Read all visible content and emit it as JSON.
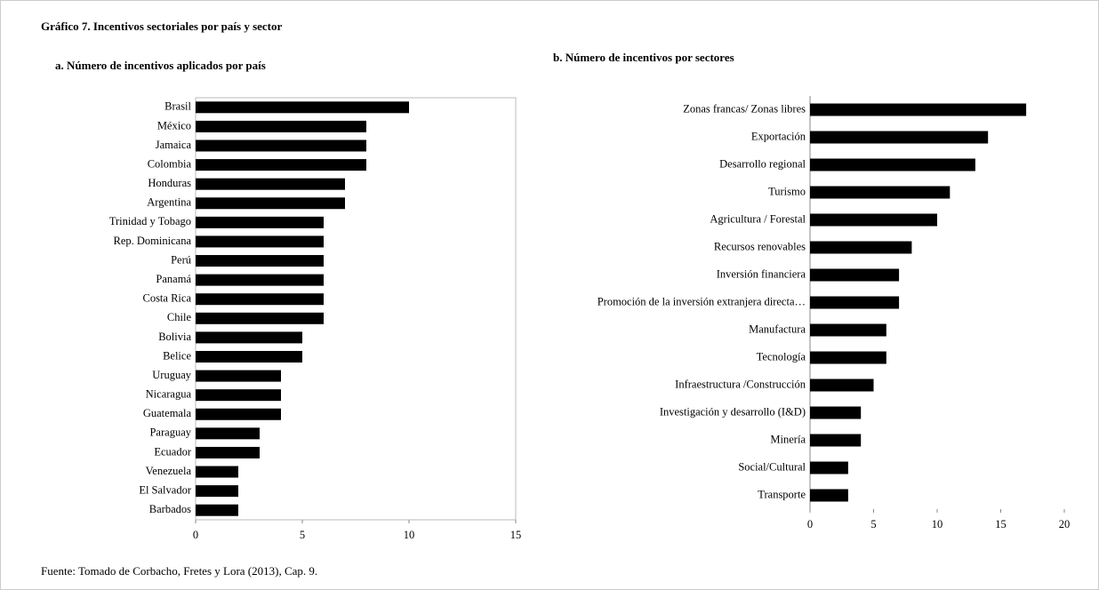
{
  "title": "Gráfico 7. Incentivos sectoriales por país y sector",
  "source": "Fuente: Tomado de Corbacho, Fretes y Lora (2013), Cap. 9.",
  "chart_data": [
    {
      "type": "barh",
      "title": "a. Número de incentivos aplicados por país",
      "categories": [
        "Brasil",
        "México",
        "Jamaica",
        "Colombia",
        "Honduras",
        "Argentina",
        "Trinidad y Tobago",
        "Rep. Dominicana",
        "Perú",
        "Panamá",
        "Costa Rica",
        "Chile",
        "Bolivia",
        "Belice",
        "Uruguay",
        "Nicaragua",
        "Guatemala",
        "Paraguay",
        "Ecuador",
        "Venezuela",
        "El Salvador",
        "Barbados"
      ],
      "values": [
        10,
        8,
        8,
        8,
        7,
        7,
        6,
        6,
        6,
        6,
        6,
        6,
        5,
        5,
        4,
        4,
        4,
        3,
        3,
        2,
        2,
        2
      ],
      "color": "#000000",
      "xlim": [
        0,
        15
      ],
      "xticks": [
        0,
        5,
        10,
        15
      ],
      "frame": true
    },
    {
      "type": "barh",
      "title": "b. Número de incentivos por sectores",
      "categories": [
        "Zonas francas/ Zonas libres",
        "Exportación",
        "Desarrollo regional",
        "Turismo",
        "Agricultura / Forestal",
        "Recursos renovables",
        "Inversión financiera",
        "Promoción de la inversión extranjera directa…",
        "Manufactura",
        "Tecnología",
        "Infraestructura /Construcción",
        "Investigación y desarrollo (I&D)",
        "Minería",
        "Social/Cultural",
        "Transporte"
      ],
      "values": [
        17,
        14,
        13,
        11,
        10,
        8,
        7,
        7,
        6,
        6,
        5,
        4,
        4,
        3,
        3
      ],
      "color": "#000000",
      "xlim": [
        0,
        20
      ],
      "xticks": [
        0,
        5,
        10,
        15,
        20
      ],
      "frame": false
    }
  ]
}
